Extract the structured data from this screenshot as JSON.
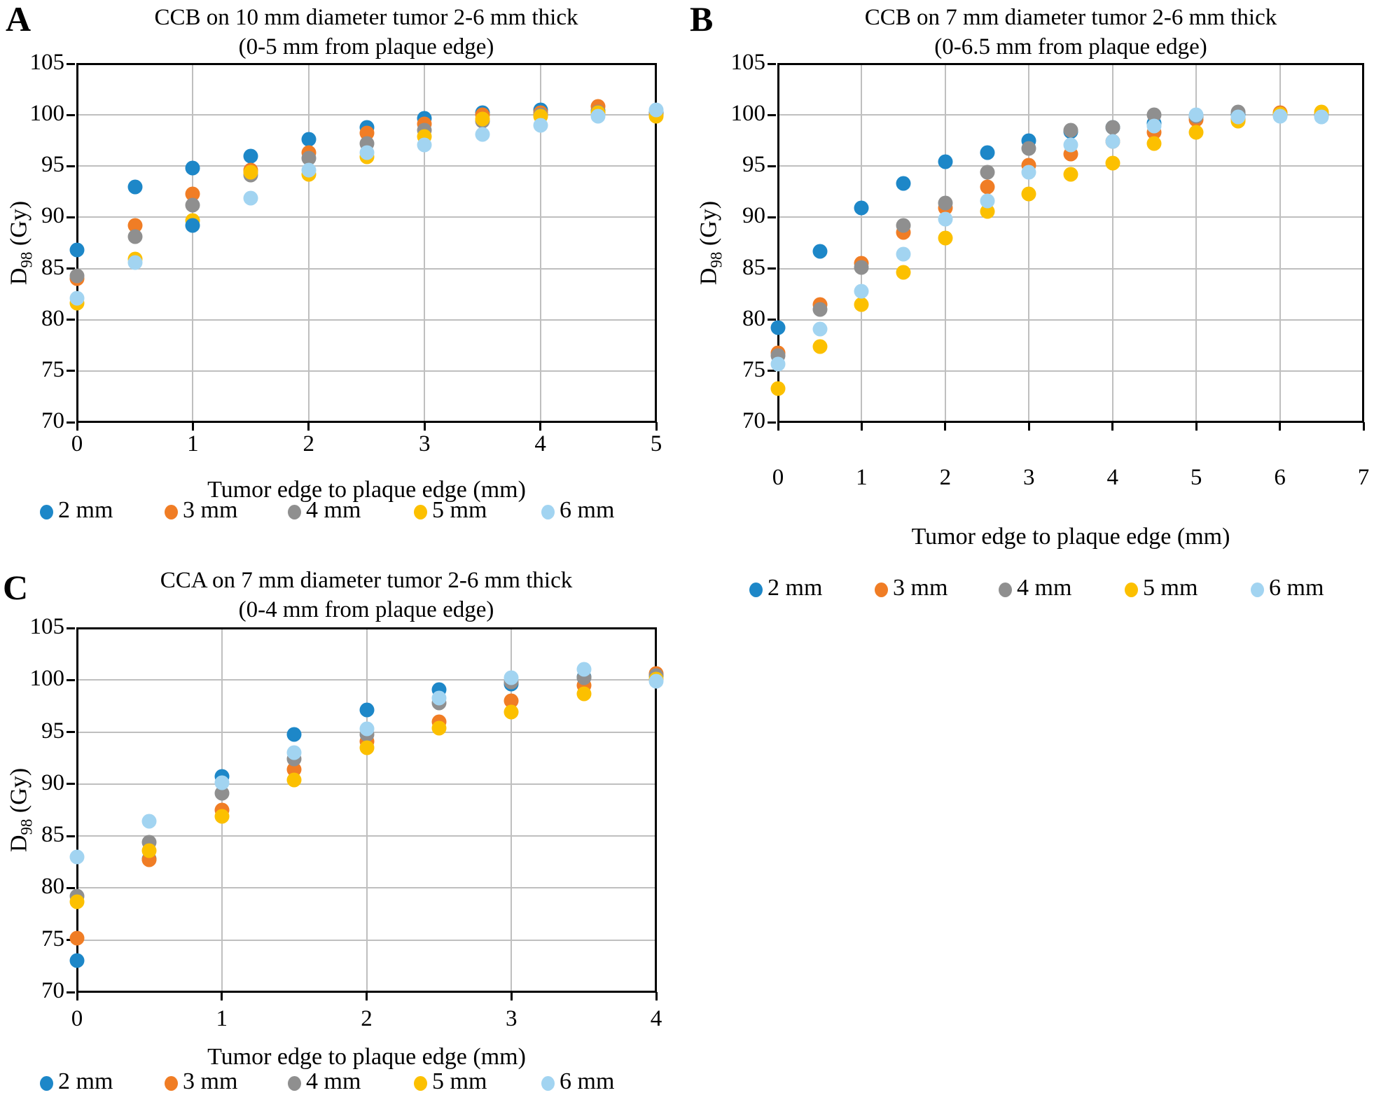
{
  "figure_title": "",
  "shared": {
    "xlabel": "Tumor edge to plaque edge (mm)",
    "ylabel": {
      "base": "D",
      "sub": "98",
      "rest": " (Gy)"
    },
    "legend_labels": [
      "2 mm",
      "3 mm",
      "4 mm",
      "5 mm",
      "6 mm"
    ]
  },
  "colors": {
    "series_2mm": "#1D87C8",
    "series_3mm": "#F07D25",
    "series_4mm": "#8F8F8F",
    "series_5mm": "#FCC000",
    "series_6mm": "#A2D4F1",
    "gridline": "#BFBFBF",
    "axis": "#000000"
  },
  "chart_data": [
    {
      "panel_letter": "A",
      "type": "scatter",
      "title_line1": "CCB on 10 mm diameter tumor 2-6 mm thick",
      "title_line2": "(0-5 mm from plaque edge)",
      "xlabel": "Tumor edge to plaque edge (mm)",
      "ylabel": {
        "base": "D",
        "sub": "98",
        "rest": " (Gy)"
      },
      "xlim": [
        0,
        5
      ],
      "ylim": [
        70,
        105
      ],
      "xticks": [
        0,
        1,
        2,
        3,
        4,
        5
      ],
      "yticks": [
        70,
        75,
        80,
        85,
        90,
        95,
        100,
        105
      ],
      "grid": true,
      "legend_position": "bottom",
      "x": [
        0,
        0.5,
        1,
        1.5,
        2,
        2.5,
        3,
        3.5,
        4,
        4.5,
        5
      ],
      "series": [
        {
          "name": "2 mm",
          "color": "#1D87C8",
          "values": [
            86.8,
            93.0,
            94.8,
            96.0,
            97.6,
            98.8,
            99.7,
            100.2,
            100.5,
            100.4,
            100.2
          ]
        },
        {
          "name": "3 mm",
          "color": "#F07D25",
          "values": [
            84.0,
            89.2,
            92.3,
            94.6,
            96.3,
            98.2,
            99.1,
            100.0,
            100.2,
            100.8,
            100.1
          ]
        },
        {
          "name": "4 mm",
          "color": "#8F8F8F",
          "values": [
            84.3,
            88.1,
            91.2,
            94.1,
            95.8,
            97.2,
            98.5,
            99.4,
            100.0,
            100.3,
            100.1
          ]
        },
        {
          "name": "5 mm",
          "color": "#FCC000",
          "values": [
            81.6,
            85.9,
            89.7,
            94.4,
            94.2,
            95.9,
            97.9,
            99.6,
            99.9,
            100.2,
            99.9
          ]
        },
        {
          "name": "6 mm",
          "color": "#A2D4F1",
          "values": [
            82.1,
            85.6,
            89.2,
            91.9,
            94.6,
            96.3,
            97.1,
            98.1,
            99.0,
            99.9,
            100.5
          ],
          "point_color_overrides": {
            "1": "#1D87C8"
          }
        }
      ]
    },
    {
      "panel_letter": "B",
      "type": "scatter",
      "title_line1": "CCB on 7 mm diameter tumor 2-6 mm thick",
      "title_line2": "(0-6.5 mm from plaque edge)",
      "xlabel": "Tumor edge to plaque edge (mm)",
      "ylabel": {
        "base": "D",
        "sub": "98",
        "rest": " (Gy)"
      },
      "xlim": [
        0,
        7
      ],
      "ylim": [
        70,
        105
      ],
      "xticks": [
        0,
        1,
        2,
        3,
        4,
        5,
        6,
        7
      ],
      "yticks": [
        70,
        75,
        80,
        85,
        90,
        95,
        100,
        105
      ],
      "grid": true,
      "legend_position": "bottom",
      "x": [
        0,
        0.5,
        1,
        1.5,
        2,
        2.5,
        3,
        3.5,
        4,
        4.5,
        5,
        5.5,
        6,
        6.5
      ],
      "series": [
        {
          "name": "2 mm",
          "color": "#1D87C8",
          "values": [
            79.2,
            86.7,
            90.9,
            93.3,
            95.4,
            96.3,
            97.5,
            98.4,
            98.8,
            99.2,
            99.9,
            100.1,
            100.0,
            100.0
          ]
        },
        {
          "name": "3 mm",
          "color": "#F07D25",
          "values": [
            76.8,
            81.5,
            85.5,
            88.5,
            90.9,
            93.0,
            95.1,
            96.2,
            97.4,
            98.3,
            99.5,
            99.6,
            100.2,
            100.0
          ]
        },
        {
          "name": "4 mm",
          "color": "#8F8F8F",
          "values": [
            76.5,
            81.0,
            85.1,
            89.2,
            91.4,
            94.4,
            96.7,
            98.5,
            98.8,
            100.0,
            99.9,
            100.3,
            100.1,
            100.0
          ]
        },
        {
          "name": "5 mm",
          "color": "#FCC000",
          "values": [
            73.3,
            77.4,
            81.5,
            84.6,
            88.0,
            90.6,
            92.3,
            94.2,
            95.3,
            97.2,
            98.3,
            99.4,
            100.1,
            100.3
          ]
        },
        {
          "name": "6 mm",
          "color": "#A2D4F1",
          "values": [
            75.7,
            79.1,
            82.8,
            86.4,
            89.8,
            91.6,
            94.4,
            97.1,
            97.4,
            98.9,
            100.0,
            99.8,
            99.9,
            99.8
          ]
        }
      ]
    },
    {
      "panel_letter": "C",
      "type": "scatter",
      "title_line1": "CCA on 7 mm diameter tumor 2-6 mm thick",
      "title_line2": "(0-4 mm from plaque edge)",
      "xlabel": "Tumor edge to plaque edge (mm)",
      "ylabel": {
        "base": "D",
        "sub": "98",
        "rest": " (Gy)"
      },
      "xlim": [
        0,
        4
      ],
      "ylim": [
        70,
        105
      ],
      "xticks": [
        0,
        1,
        2,
        3,
        4
      ],
      "yticks": [
        70,
        75,
        80,
        85,
        90,
        95,
        100,
        105
      ],
      "grid": true,
      "legend_position": "bottom",
      "x": [
        0,
        0.5,
        1,
        1.5,
        2,
        2.5,
        3,
        3.5,
        4
      ],
      "series": [
        {
          "name": "2 mm",
          "color": "#1D87C8",
          "values": [
            73.0,
            82.8,
            90.7,
            94.8,
            97.1,
            99.1,
            99.6,
            100.3,
            100.4
          ]
        },
        {
          "name": "3 mm",
          "color": "#F07D25",
          "values": [
            75.2,
            82.7,
            87.5,
            91.4,
            94.1,
            96.0,
            98.0,
            99.5,
            100.6
          ]
        },
        {
          "name": "4 mm",
          "color": "#8F8F8F",
          "values": [
            79.2,
            84.4,
            89.1,
            92.4,
            94.8,
            97.8,
            99.8,
            100.2,
            100.4
          ]
        },
        {
          "name": "5 mm",
          "color": "#FCC000",
          "values": [
            78.7,
            83.6,
            86.9,
            90.4,
            93.5,
            95.4,
            96.9,
            98.7,
            100.1
          ]
        },
        {
          "name": "6 mm",
          "color": "#A2D4F1",
          "values": [
            83.0,
            86.4,
            90.1,
            93.0,
            95.3,
            98.3,
            100.2,
            101.0,
            99.9
          ]
        }
      ]
    }
  ]
}
